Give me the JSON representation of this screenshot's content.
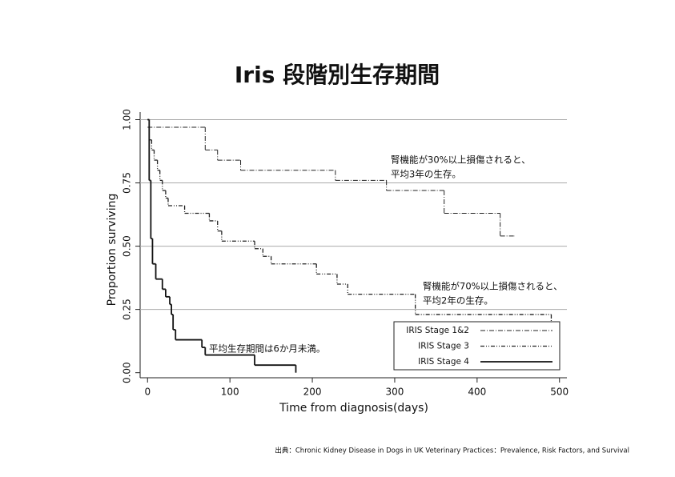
{
  "chart_data": {
    "type": "step",
    "title": "Iris 段階別生存期間",
    "x_label": "Time from diagnosis(days)",
    "y_label": "Proportion surviving",
    "xlim": [
      -9,
      509
    ],
    "ylim": [
      -0.02,
      1.03
    ],
    "xticks": [
      0,
      100,
      200,
      300,
      400,
      500
    ],
    "yticks": [
      {
        "value": 0,
        "label": "0.00"
      },
      {
        "value": 0.25,
        "label": "0.25"
      },
      {
        "value": 0.5,
        "label": "0.50"
      },
      {
        "value": 0.75,
        "label": "0.75"
      },
      {
        "value": 1,
        "label": "1.00"
      }
    ],
    "grid": true,
    "series": [
      {
        "name": "IRIS Stage 1&2",
        "color": "#222222",
        "dash": "6,2,1,2",
        "width": 1,
        "x": [
          0,
          70,
          85,
          113,
          228,
          290,
          360,
          428,
          445
        ],
        "values": [
          0.97,
          0.88,
          0.84,
          0.8,
          0.76,
          0.72,
          0.63,
          0.54,
          0.54
        ]
      },
      {
        "name": "IRIS Stage 3",
        "color": "#222222",
        "dash": "5,2,1,2,1,2",
        "width": 1.3,
        "x": [
          0,
          2,
          5,
          8,
          12,
          15,
          18,
          22,
          25,
          45,
          75,
          85,
          90,
          130,
          140,
          150,
          205,
          230,
          243,
          325,
          490
        ],
        "values": [
          1,
          0.92,
          0.88,
          0.84,
          0.8,
          0.76,
          0.72,
          0.69,
          0.66,
          0.63,
          0.6,
          0.56,
          0.52,
          0.49,
          0.46,
          0.43,
          0.39,
          0.35,
          0.31,
          0.23,
          0.2
        ]
      },
      {
        "name": "IRIS Stage 4",
        "color": "#111111",
        "dash": "none",
        "width": 1.8,
        "x": [
          0,
          2,
          4,
          6,
          10,
          18,
          22,
          27,
          29,
          31,
          34,
          66,
          70,
          130,
          180
        ],
        "values": [
          1,
          0.76,
          0.53,
          0.43,
          0.37,
          0.33,
          0.3,
          0.27,
          0.23,
          0.17,
          0.13,
          0.1,
          0.07,
          0.03,
          0
        ]
      }
    ],
    "annotations": [
      {
        "lines": [
          "腎機能が30%以上損傷されると、",
          "平均3年の生存。"
        ],
        "color": "#e02020"
      },
      {
        "lines": [
          "腎機能が70%以上損傷されると、",
          "平均2年の生存。"
        ],
        "color": "#e02020"
      },
      {
        "lines": [
          "平均生存期間は6か月未満。"
        ],
        "color": "#e02020"
      }
    ],
    "source": "出典：Chronic Kidney Disease in Dogs in UK Veterinary Practices：Prevalence, Risk Factors, and Survival"
  }
}
